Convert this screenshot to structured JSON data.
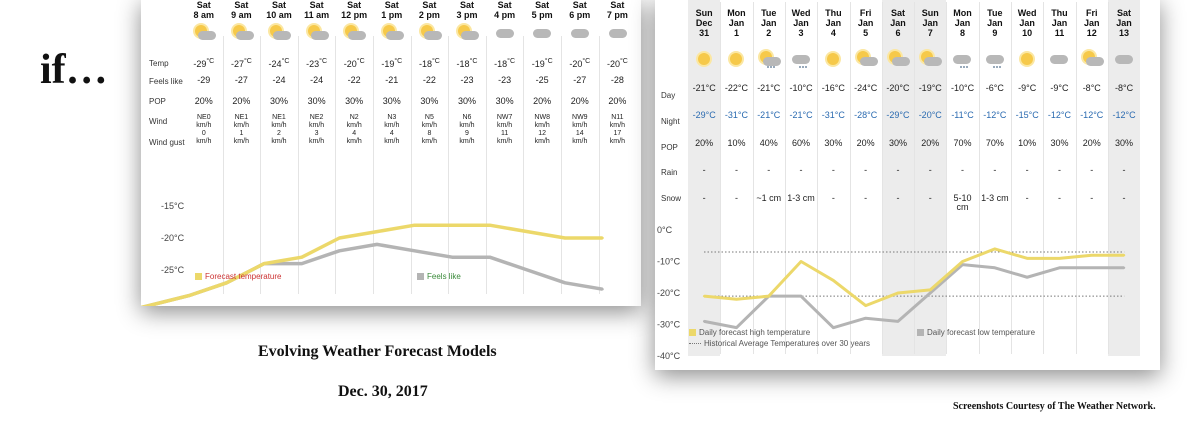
{
  "intro_text": "if…",
  "captions": {
    "title": "Evolving Weather Forecast Models",
    "date": "Dec. 30, 2017",
    "credit": "Screenshots Courtesy of The Weather Network."
  },
  "colors": {
    "forecast": "#ecd86a",
    "feels": "#b4b4b4",
    "night": "#2a6ab0",
    "legend_red": "#cc3333"
  },
  "hourly": {
    "row_labels": [
      "Temp",
      "Feels like",
      "POP",
      "Wind",
      "Wind gust"
    ],
    "columns": [
      {
        "day": "Sat",
        "time": "8 am",
        "icon": "sun-cloud-icon",
        "temp": "-29",
        "unit": "°C",
        "feels": "-29",
        "pop": "20%",
        "wind_dir": "NE0",
        "wind_unit": "km/h",
        "gust": "0",
        "gust_unit": "km/h"
      },
      {
        "day": "Sat",
        "time": "9 am",
        "icon": "sun-cloud-icon",
        "temp": "-27",
        "unit": "°C",
        "feels": "-27",
        "pop": "20%",
        "wind_dir": "NE1",
        "wind_unit": "km/h",
        "gust": "1",
        "gust_unit": "km/h"
      },
      {
        "day": "Sat",
        "time": "10 am",
        "icon": "sun-cloud-icon",
        "temp": "-24",
        "unit": "°C",
        "feels": "-24",
        "pop": "30%",
        "wind_dir": "NE1",
        "wind_unit": "km/h",
        "gust": "2",
        "gust_unit": "km/h"
      },
      {
        "day": "Sat",
        "time": "11 am",
        "icon": "sun-cloud-icon",
        "temp": "-23",
        "unit": "°C",
        "feels": "-24",
        "pop": "30%",
        "wind_dir": "NE2",
        "wind_unit": "km/h",
        "gust": "3",
        "gust_unit": "km/h"
      },
      {
        "day": "Sat",
        "time": "12 pm",
        "icon": "sun-cloud-icon",
        "temp": "-20",
        "unit": "°C",
        "feels": "-22",
        "pop": "30%",
        "wind_dir": "N2",
        "wind_unit": "km/h",
        "gust": "4",
        "gust_unit": "km/h"
      },
      {
        "day": "Sat",
        "time": "1 pm",
        "icon": "sun-cloud-icon",
        "temp": "-19",
        "unit": "°C",
        "feels": "-21",
        "pop": "30%",
        "wind_dir": "N3",
        "wind_unit": "km/h",
        "gust": "4",
        "gust_unit": "km/h"
      },
      {
        "day": "Sat",
        "time": "2 pm",
        "icon": "sun-cloud-icon",
        "temp": "-18",
        "unit": "°C",
        "feels": "-22",
        "pop": "30%",
        "wind_dir": "N5",
        "wind_unit": "km/h",
        "gust": "8",
        "gust_unit": "km/h"
      },
      {
        "day": "Sat",
        "time": "3 pm",
        "icon": "sun-cloud-icon",
        "temp": "-18",
        "unit": "°C",
        "feels": "-23",
        "pop": "30%",
        "wind_dir": "N6",
        "wind_unit": "km/h",
        "gust": "9",
        "gust_unit": "km/h"
      },
      {
        "day": "Sat",
        "time": "4 pm",
        "icon": "cloud-icon",
        "temp": "-18",
        "unit": "°C",
        "feels": "-23",
        "pop": "30%",
        "wind_dir": "NW7",
        "wind_unit": "km/h",
        "gust": "11",
        "gust_unit": "km/h"
      },
      {
        "day": "Sat",
        "time": "5 pm",
        "icon": "cloud-icon",
        "temp": "-19",
        "unit": "°C",
        "feels": "-25",
        "pop": "20%",
        "wind_dir": "NW8",
        "wind_unit": "km/h",
        "gust": "12",
        "gust_unit": "km/h"
      },
      {
        "day": "Sat",
        "time": "6 pm",
        "icon": "cloud-icon",
        "temp": "-20",
        "unit": "°C",
        "feels": "-27",
        "pop": "20%",
        "wind_dir": "NW9",
        "wind_unit": "km/h",
        "gust": "14",
        "gust_unit": "km/h"
      },
      {
        "day": "Sat",
        "time": "7 pm",
        "icon": "cloud-icon",
        "temp": "-20",
        "unit": "°C",
        "feels": "-28",
        "pop": "20%",
        "wind_dir": "N11",
        "wind_unit": "km/h",
        "gust": "17",
        "gust_unit": "km/h"
      }
    ]
  },
  "daily": {
    "row_labels": [
      "Day",
      "Night",
      "POP",
      "Rain",
      "Snow"
    ],
    "columns": [
      {
        "dow": "Sun",
        "mon": "Dec",
        "dom": "31",
        "icon": "sun-icon",
        "day": "-21°C",
        "night": "-29°C",
        "pop": "20%",
        "rain": "-",
        "snow": "-",
        "weekend": true
      },
      {
        "dow": "Mon",
        "mon": "Jan",
        "dom": "1",
        "icon": "sun-icon",
        "day": "-22°C",
        "night": "-31°C",
        "pop": "10%",
        "rain": "-",
        "snow": "-",
        "weekend": false
      },
      {
        "dow": "Tue",
        "mon": "Jan",
        "dom": "2",
        "icon": "sun-cloud-snow-icon",
        "day": "-21°C",
        "night": "-21°C",
        "pop": "40%",
        "rain": "-",
        "snow": "~1 cm",
        "weekend": false
      },
      {
        "dow": "Wed",
        "mon": "Jan",
        "dom": "3",
        "icon": "cloud-snow-icon",
        "day": "-10°C",
        "night": "-21°C",
        "pop": "60%",
        "rain": "-",
        "snow": "1-3 cm",
        "weekend": false
      },
      {
        "dow": "Thu",
        "mon": "Jan",
        "dom": "4",
        "icon": "sun-icon",
        "day": "-16°C",
        "night": "-31°C",
        "pop": "30%",
        "rain": "-",
        "snow": "-",
        "weekend": false
      },
      {
        "dow": "Fri",
        "mon": "Jan",
        "dom": "5",
        "icon": "sun-cloud-icon",
        "day": "-24°C",
        "night": "-28°C",
        "pop": "20%",
        "rain": "-",
        "snow": "-",
        "weekend": false
      },
      {
        "dow": "Sat",
        "mon": "Jan",
        "dom": "6",
        "icon": "sun-cloud-icon",
        "day": "-20°C",
        "night": "-29°C",
        "pop": "30%",
        "rain": "-",
        "snow": "-",
        "weekend": true
      },
      {
        "dow": "Sun",
        "mon": "Jan",
        "dom": "7",
        "icon": "sun-cloud-icon",
        "day": "-19°C",
        "night": "-20°C",
        "pop": "20%",
        "rain": "-",
        "snow": "-",
        "weekend": true
      },
      {
        "dow": "Mon",
        "mon": "Jan",
        "dom": "8",
        "icon": "cloud-snow-icon",
        "day": "-10°C",
        "night": "-11°C",
        "pop": "70%",
        "rain": "-",
        "snow": "5-10 cm",
        "weekend": false
      },
      {
        "dow": "Tue",
        "mon": "Jan",
        "dom": "9",
        "icon": "cloud-snow-icon",
        "day": "-6°C",
        "night": "-12°C",
        "pop": "70%",
        "rain": "-",
        "snow": "1-3 cm",
        "weekend": false
      },
      {
        "dow": "Wed",
        "mon": "Jan",
        "dom": "10",
        "icon": "sun-icon",
        "day": "-9°C",
        "night": "-15°C",
        "pop": "10%",
        "rain": "-",
        "snow": "-",
        "weekend": false
      },
      {
        "dow": "Thu",
        "mon": "Jan",
        "dom": "11",
        "icon": "cloud-icon",
        "day": "-9°C",
        "night": "-12°C",
        "pop": "30%",
        "rain": "-",
        "snow": "-",
        "weekend": false
      },
      {
        "dow": "Fri",
        "mon": "Jan",
        "dom": "12",
        "icon": "sun-cloud-icon",
        "day": "-8°C",
        "night": "-12°C",
        "pop": "20%",
        "rain": "-",
        "snow": "-",
        "weekend": false
      },
      {
        "dow": "Sat",
        "mon": "Jan",
        "dom": "13",
        "icon": "cloud-icon",
        "day": "-8°C",
        "night": "-12°C",
        "pop": "30%",
        "rain": "-",
        "snow": "-",
        "weekend": true
      }
    ]
  },
  "chart_data": [
    {
      "type": "line",
      "x": [
        "8 am",
        "9 am",
        "10 am",
        "11 am",
        "12 pm",
        "1 pm",
        "2 pm",
        "3 pm",
        "4 pm",
        "5 pm",
        "6 pm",
        "7 pm"
      ],
      "series": [
        {
          "name": "Forecast temperature",
          "values": [
            -29,
            -27,
            -24,
            -23,
            -20,
            -19,
            -18,
            -18,
            -18,
            -19,
            -20,
            -20
          ]
        },
        {
          "name": "Feels like",
          "values": [
            -29,
            -27,
            -24,
            -24,
            -22,
            -21,
            -22,
            -23,
            -23,
            -25,
            -27,
            -28
          ]
        }
      ],
      "ytick_labels": [
        "-15°C",
        "-20°C",
        "-25°C"
      ],
      "yticks": [
        -15,
        -20,
        -25
      ],
      "ylim": [
        -29,
        -10
      ],
      "grid": true,
      "legend": "bottom"
    },
    {
      "type": "line",
      "x": [
        "Dec 31",
        "Jan 1",
        "Jan 2",
        "Jan 3",
        "Jan 4",
        "Jan 5",
        "Jan 6",
        "Jan 7",
        "Jan 8",
        "Jan 9",
        "Jan 10",
        "Jan 11",
        "Jan 12",
        "Jan 13"
      ],
      "series": [
        {
          "name": "Daily forecast high temperature",
          "values": [
            -21,
            -22,
            -21,
            -10,
            -16,
            -24,
            -20,
            -19,
            -10,
            -6,
            -9,
            -9,
            -8,
            -8
          ]
        },
        {
          "name": "Daily forecast low temperature",
          "values": [
            -29,
            -31,
            -21,
            -21,
            -31,
            -28,
            -29,
            -20,
            -11,
            -12,
            -15,
            -12,
            -12,
            -12
          ]
        }
      ],
      "reference_lines": [
        {
          "name": "Historical Average Temperatures over 30 years",
          "values": [
            -7,
            -21
          ]
        }
      ],
      "ytick_labels": [
        "0°C",
        "-10°C",
        "-20°C",
        "-30°C",
        "-40°C"
      ],
      "yticks": [
        0,
        -10,
        -20,
        -30,
        -40
      ],
      "ylim": [
        -40,
        0
      ],
      "grid": true,
      "legend": "bottom"
    }
  ]
}
